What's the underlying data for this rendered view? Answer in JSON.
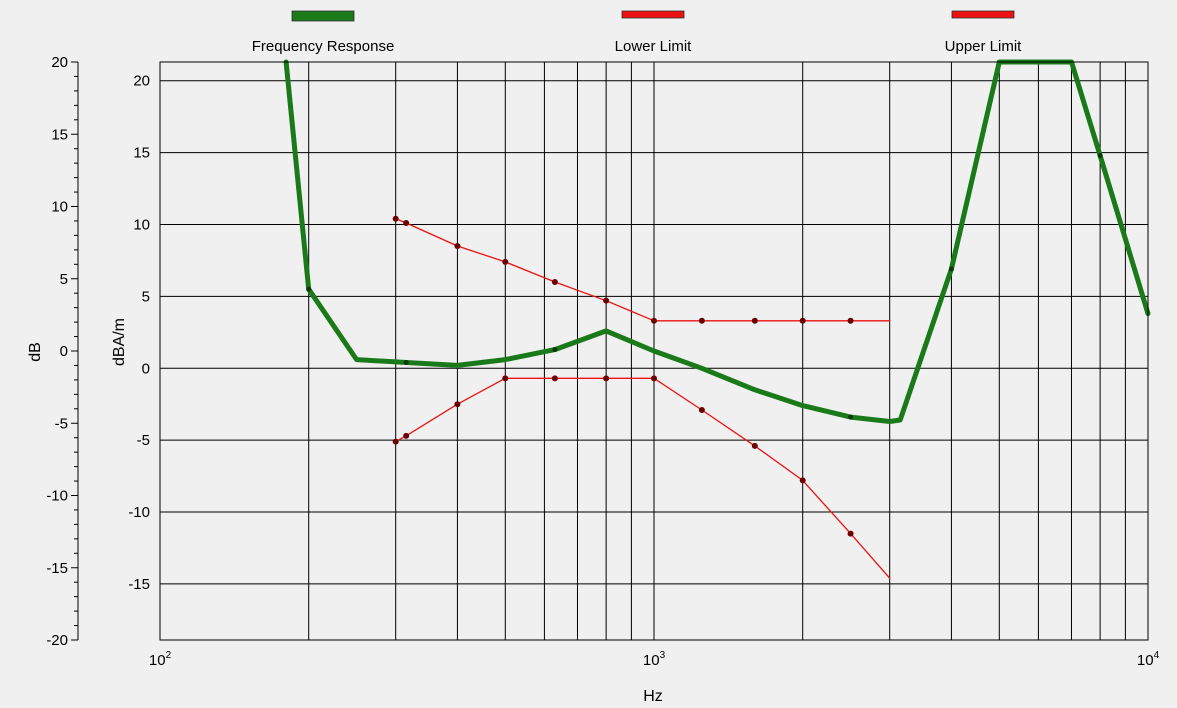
{
  "chart_data": {
    "type": "line",
    "legend": [
      {
        "label": "Frequency Response",
        "color": "#1a7a1a"
      },
      {
        "label": "Lower Limit",
        "color": "#ee1111"
      },
      {
        "label": "Upper Limit",
        "color": "#ee1111"
      }
    ],
    "xlabel": "Hz",
    "ylabel_outer": "dB",
    "ylabel_inner": "dBA/m",
    "x_scale": "log",
    "xlim": [
      100,
      10000
    ],
    "x_ticks": [
      {
        "value": 100,
        "base": "10",
        "exp": "2"
      },
      {
        "value": 1000,
        "base": "10",
        "exp": "3"
      },
      {
        "value": 10000,
        "base": "10",
        "exp": "4"
      }
    ],
    "y_outer": {
      "lim": [
        -20,
        20
      ],
      "ticks": [
        20,
        15,
        10,
        5,
        0,
        -5,
        -10,
        -15,
        -20
      ]
    },
    "y_inner": {
      "lim": [
        -18.9,
        21.3
      ],
      "ticks": [
        20,
        15,
        10,
        5,
        0,
        -5,
        -10,
        -15
      ]
    },
    "grid": true,
    "series": [
      {
        "name": "Frequency Response",
        "color": "#1a7a1a",
        "x": [
          180,
          200,
          250,
          315,
          400,
          500,
          630,
          800,
          1000,
          1250,
          1600,
          2000,
          2500,
          3000,
          3150,
          4000,
          5000,
          7000,
          8000,
          10000
        ],
        "y": [
          21.3,
          5.5,
          0.6,
          0.4,
          0.2,
          0.6,
          1.3,
          2.6,
          1.2,
          0.0,
          -1.5,
          -2.6,
          -3.4,
          -3.7,
          -3.6,
          6.9,
          21.3,
          21.3,
          14.8,
          3.8
        ],
        "markers": [
          200,
          315,
          630,
          2500,
          4000,
          8000
        ]
      },
      {
        "name": "Upper Limit",
        "color": "#ee1111",
        "x": [
          300,
          315,
          400,
          500,
          630,
          800,
          1000,
          1250,
          1600,
          2000,
          2500,
          3000
        ],
        "y": [
          10.4,
          10.1,
          8.5,
          7.4,
          6.0,
          4.7,
          3.3,
          3.3,
          3.3,
          3.3,
          3.3,
          3.3
        ],
        "markers": [
          300,
          315,
          400,
          500,
          630,
          800,
          1000,
          1250,
          1600,
          2000,
          2500
        ]
      },
      {
        "name": "Lower Limit",
        "color": "#ee1111",
        "x": [
          300,
          315,
          400,
          500,
          630,
          800,
          1000,
          1250,
          1600,
          2000,
          2500,
          3000
        ],
        "y": [
          -5.1,
          -4.7,
          -2.5,
          -0.7,
          -0.7,
          -0.7,
          -0.7,
          -2.9,
          -5.4,
          -7.8,
          -11.5,
          -14.6
        ],
        "markers": [
          300,
          315,
          400,
          500,
          630,
          800,
          1000,
          1250,
          1600,
          2000,
          2500
        ]
      }
    ]
  }
}
